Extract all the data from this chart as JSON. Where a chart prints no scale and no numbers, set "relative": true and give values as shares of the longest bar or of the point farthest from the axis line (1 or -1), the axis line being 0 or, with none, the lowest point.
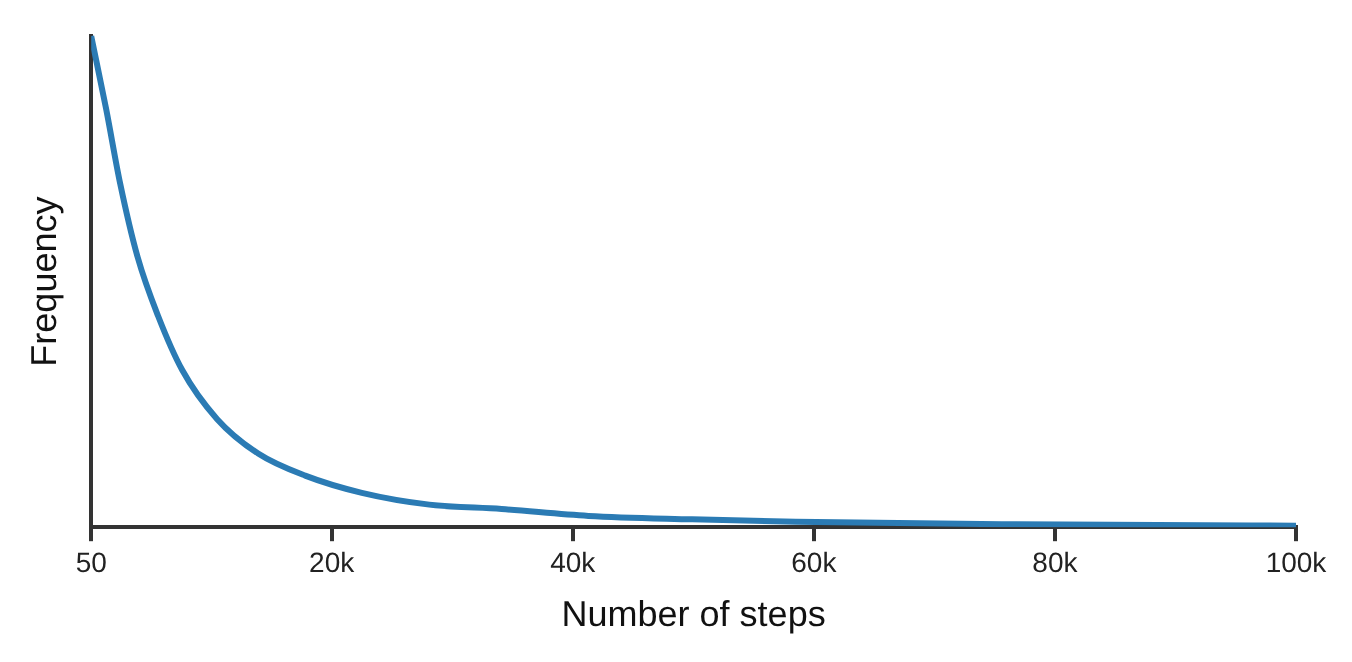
{
  "chart_data": {
    "type": "line",
    "xlabel": "Number of steps",
    "ylabel": "Frequency",
    "relative": true,
    "xlim": [
      50,
      100000
    ],
    "xticks": [
      50,
      {
        "value": 20000,
        "label": "20k"
      },
      {
        "value": 40000,
        "label": "40k"
      },
      {
        "value": 60000,
        "label": "60k"
      },
      {
        "value": 80000,
        "label": "80k"
      },
      {
        "value": 100000,
        "label": "100k"
      }
    ],
    "x": [
      50,
      1300,
      2450,
      3900,
      5600,
      7600,
      10500,
      13900,
      17800,
      22500,
      28100,
      34100,
      41300,
      49900,
      58500,
      75600,
      100000
    ],
    "series": [
      {
        "color": "#2b7bb4",
        "values": [
          1.0,
          0.85,
          0.7,
          0.55,
          0.43,
          0.32,
          0.22,
          0.15,
          0.105,
          0.07,
          0.046,
          0.037,
          0.023,
          0.016,
          0.011,
          0.006,
          0.003
        ]
      }
    ]
  }
}
